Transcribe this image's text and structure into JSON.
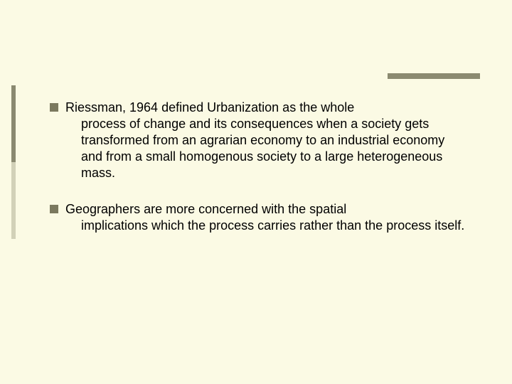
{
  "slide": {
    "background_color": "#fbfae4",
    "text_color": "#000000",
    "bullet_color": "#7b795e",
    "accent_top_color": "#8b8a70",
    "side_accent_top_color": "#8a8970",
    "side_accent_bottom_color": "#d2d1b8",
    "font_size_pt": 18,
    "font_family": "Arial",
    "bullets": [
      {
        "first_line": "Riessman, 1964 defined Urbanization as the whole",
        "continuation": "process of change and its consequences when a society gets transformed from an agrarian economy to an industrial economy and from a small homogenous society to a large heterogeneous mass."
      },
      {
        "first_line": "Geographers are more concerned with the spatial",
        "continuation": "implications which the process carries rather than the process itself."
      }
    ]
  }
}
